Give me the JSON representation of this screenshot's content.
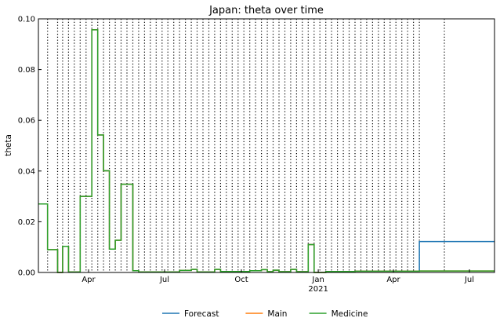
{
  "chart_data": {
    "type": "line",
    "title": "Japan: theta over time",
    "xlabel": "",
    "ylabel": "theta",
    "x_axis": "date",
    "xlim": [
      "2020-02-01",
      "2021-07-31"
    ],
    "ylim": [
      0,
      0.1
    ],
    "yticks": [
      0.0,
      0.02,
      0.04,
      0.06,
      0.08,
      0.1
    ],
    "ytick_labels": [
      "0.00",
      "0.02",
      "0.04",
      "0.06",
      "0.08",
      "0.10"
    ],
    "xticks": [
      {
        "date": "2020-04-01",
        "label": "Apr",
        "sublabel": ""
      },
      {
        "date": "2020-07-01",
        "label": "Jul",
        "sublabel": ""
      },
      {
        "date": "2020-10-01",
        "label": "Oct",
        "sublabel": ""
      },
      {
        "date": "2021-01-01",
        "label": "Jan",
        "sublabel": "2021"
      },
      {
        "date": "2021-04-01",
        "label": "Apr",
        "sublabel": ""
      },
      {
        "date": "2021-07-01",
        "label": "Jul",
        "sublabel": ""
      }
    ],
    "grid": false,
    "legend_position": "bottom-center",
    "change_points": [
      "2020-02-12",
      "2020-02-24",
      "2020-03-01",
      "2020-03-08",
      "2020-03-15",
      "2020-03-22",
      "2020-03-29",
      "2020-04-05",
      "2020-04-12",
      "2020-04-19",
      "2020-04-26",
      "2020-05-03",
      "2020-05-10",
      "2020-05-17",
      "2020-05-24",
      "2020-05-31",
      "2020-06-07",
      "2020-06-14",
      "2020-06-21",
      "2020-06-28",
      "2020-07-05",
      "2020-07-12",
      "2020-07-19",
      "2020-07-26",
      "2020-08-02",
      "2020-08-09",
      "2020-08-16",
      "2020-08-23",
      "2020-08-30",
      "2020-09-06",
      "2020-09-13",
      "2020-09-20",
      "2020-09-27",
      "2020-10-04",
      "2020-10-11",
      "2020-10-18",
      "2020-10-25",
      "2020-11-01",
      "2020-11-08",
      "2020-11-15",
      "2020-11-22",
      "2020-11-29",
      "2020-12-06",
      "2020-12-13",
      "2020-12-20",
      "2020-12-27",
      "2021-01-03",
      "2021-01-10",
      "2021-01-17",
      "2021-01-24",
      "2021-01-31",
      "2021-02-07",
      "2021-02-14",
      "2021-02-21",
      "2021-02-28",
      "2021-03-07",
      "2021-03-14",
      "2021-03-21",
      "2021-03-28",
      "2021-04-04",
      "2021-04-11",
      "2021-04-18",
      "2021-04-25",
      "2021-05-02",
      "2021-06-01"
    ],
    "series": [
      {
        "name": "Forecast",
        "color": "#1f77b4",
        "style": "step",
        "points": [
          [
            "2020-02-01",
            0.027
          ],
          [
            "2020-02-12",
            0.009
          ],
          [
            "2020-02-24",
            0.0
          ],
          [
            "2020-03-01",
            0.0103
          ],
          [
            "2020-03-08",
            0.0002
          ],
          [
            "2020-03-22",
            0.03
          ],
          [
            "2020-03-29",
            0.03
          ],
          [
            "2020-04-05",
            0.0957
          ],
          [
            "2020-04-12",
            0.0542
          ],
          [
            "2020-04-19",
            0.0401
          ],
          [
            "2020-04-26",
            0.0092
          ],
          [
            "2020-05-03",
            0.0127
          ],
          [
            "2020-05-10",
            0.0348
          ],
          [
            "2020-05-24",
            0.0007
          ],
          [
            "2020-05-31",
            0.0002
          ],
          [
            "2020-07-19",
            0.0008
          ],
          [
            "2020-08-02",
            0.0012
          ],
          [
            "2020-08-09",
            0.0002
          ],
          [
            "2020-08-30",
            0.0012
          ],
          [
            "2020-09-06",
            0.0004
          ],
          [
            "2020-10-11",
            0.0007
          ],
          [
            "2020-10-25",
            0.0011
          ],
          [
            "2020-11-01",
            0.0003
          ],
          [
            "2020-11-08",
            0.0009
          ],
          [
            "2020-11-15",
            0.0003
          ],
          [
            "2020-11-29",
            0.0012
          ],
          [
            "2020-12-06",
            0.0003
          ],
          [
            "2020-12-13",
            0.0003
          ],
          [
            "2020-12-20",
            0.011
          ],
          [
            "2020-12-27",
            0.0
          ],
          [
            "2021-01-10",
            0.0004
          ],
          [
            "2021-02-14",
            0.0005
          ],
          [
            "2021-05-02",
            0.0122
          ],
          [
            "2021-07-31",
            0.0122
          ]
        ]
      },
      {
        "name": "Main",
        "color": "#ff7f0e",
        "style": "step",
        "points": [
          [
            "2020-02-01",
            0.027
          ],
          [
            "2020-02-12",
            0.009
          ],
          [
            "2020-02-24",
            0.0
          ],
          [
            "2020-03-01",
            0.0103
          ],
          [
            "2020-03-08",
            0.0002
          ],
          [
            "2020-03-22",
            0.03
          ],
          [
            "2020-03-29",
            0.03
          ],
          [
            "2020-04-05",
            0.0957
          ],
          [
            "2020-04-12",
            0.0542
          ],
          [
            "2020-04-19",
            0.0401
          ],
          [
            "2020-04-26",
            0.0092
          ],
          [
            "2020-05-03",
            0.0127
          ],
          [
            "2020-05-10",
            0.0348
          ],
          [
            "2020-05-24",
            0.0007
          ],
          [
            "2020-05-31",
            0.0002
          ],
          [
            "2020-07-19",
            0.0008
          ],
          [
            "2020-08-02",
            0.0012
          ],
          [
            "2020-08-09",
            0.0002
          ],
          [
            "2020-08-30",
            0.0012
          ],
          [
            "2020-09-06",
            0.0004
          ],
          [
            "2020-10-11",
            0.0007
          ],
          [
            "2020-10-25",
            0.0011
          ],
          [
            "2020-11-01",
            0.0003
          ],
          [
            "2020-11-08",
            0.0009
          ],
          [
            "2020-11-15",
            0.0003
          ],
          [
            "2020-11-29",
            0.0012
          ],
          [
            "2020-12-06",
            0.0003
          ],
          [
            "2020-12-13",
            0.0003
          ],
          [
            "2020-12-20",
            0.011
          ],
          [
            "2020-12-27",
            0.0
          ],
          [
            "2021-01-10",
            0.0004
          ],
          [
            "2021-02-14",
            0.0005
          ],
          [
            "2021-05-02",
            0.0006
          ],
          [
            "2021-07-31",
            0.0006
          ]
        ]
      },
      {
        "name": "Medicine",
        "color": "#2ca02c",
        "style": "step",
        "points": [
          [
            "2020-02-01",
            0.027
          ],
          [
            "2020-02-12",
            0.009
          ],
          [
            "2020-02-24",
            0.0
          ],
          [
            "2020-03-01",
            0.0103
          ],
          [
            "2020-03-08",
            0.0002
          ],
          [
            "2020-03-22",
            0.03
          ],
          [
            "2020-03-29",
            0.03
          ],
          [
            "2020-04-05",
            0.0957
          ],
          [
            "2020-04-12",
            0.0542
          ],
          [
            "2020-04-19",
            0.0401
          ],
          [
            "2020-04-26",
            0.0092
          ],
          [
            "2020-05-03",
            0.0127
          ],
          [
            "2020-05-10",
            0.0348
          ],
          [
            "2020-05-24",
            0.0007
          ],
          [
            "2020-05-31",
            0.0002
          ],
          [
            "2020-07-19",
            0.0008
          ],
          [
            "2020-08-02",
            0.0012
          ],
          [
            "2020-08-09",
            0.0002
          ],
          [
            "2020-08-30",
            0.0012
          ],
          [
            "2020-09-06",
            0.0004
          ],
          [
            "2020-10-11",
            0.0007
          ],
          [
            "2020-10-25",
            0.0011
          ],
          [
            "2020-11-01",
            0.0003
          ],
          [
            "2020-11-08",
            0.0009
          ],
          [
            "2020-11-15",
            0.0003
          ],
          [
            "2020-11-29",
            0.0012
          ],
          [
            "2020-12-06",
            0.0003
          ],
          [
            "2020-12-13",
            0.0003
          ],
          [
            "2020-12-20",
            0.011
          ],
          [
            "2020-12-27",
            0.0
          ],
          [
            "2021-01-10",
            0.0004
          ],
          [
            "2021-02-14",
            0.0005
          ],
          [
            "2021-05-02",
            0.0006
          ],
          [
            "2021-07-31",
            0.0006
          ]
        ]
      }
    ]
  }
}
